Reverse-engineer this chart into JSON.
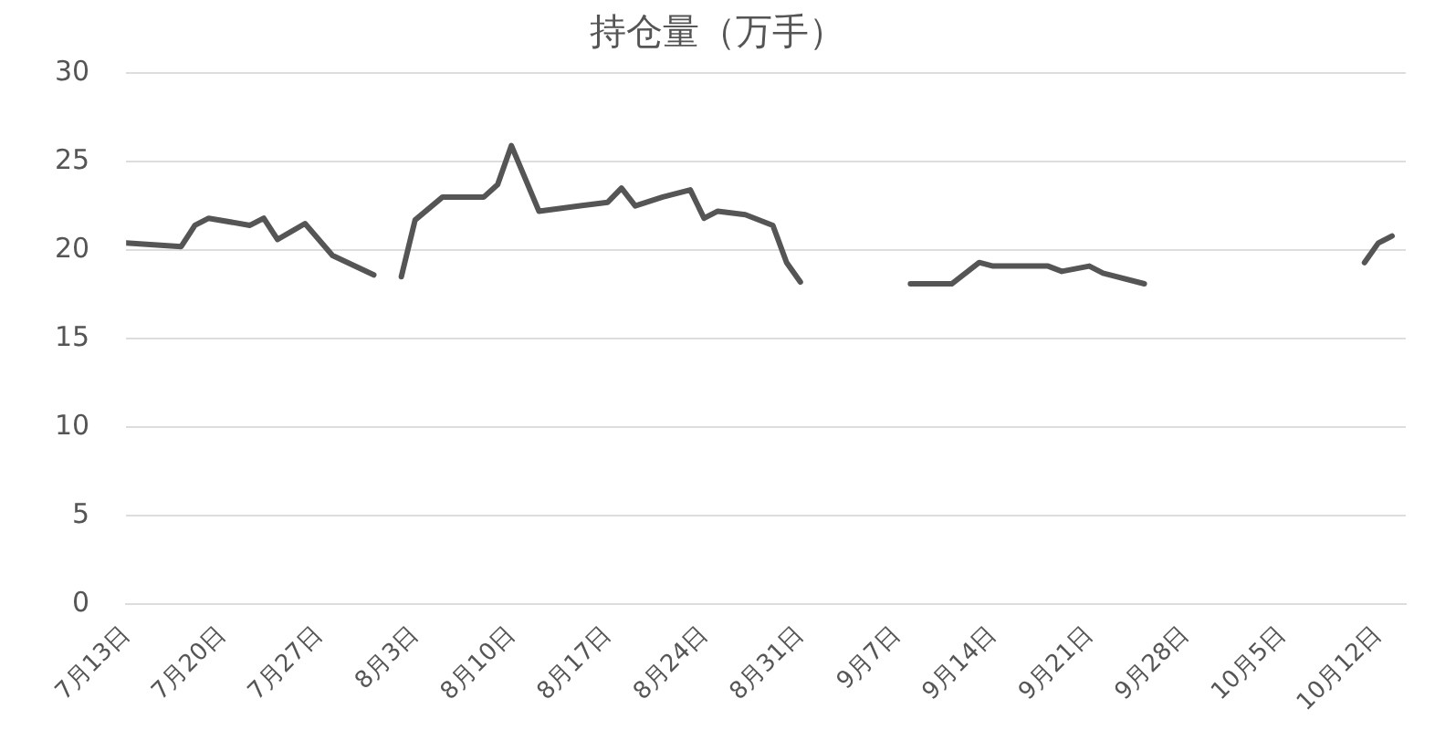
{
  "chart_data": {
    "type": "line",
    "title": "持仓量（万手）",
    "x": [
      "--07-13",
      "--07-17",
      "--07-18",
      "--07-19",
      "--07-22",
      "--07-23",
      "--07-24",
      "--07-26",
      "--07-28",
      "--07-31",
      "--08-01",
      "--08-02",
      "--08-03",
      "--08-05",
      "--08-08",
      "--08-09",
      "--08-10",
      "--08-12",
      "--08-15",
      "--08-17",
      "--08-18",
      "--08-19",
      "--08-21",
      "--08-23",
      "--08-24",
      "--08-25",
      "--08-27",
      "--08-29",
      "--08-30",
      "--08-31",
      "--09-04",
      "--09-08",
      "--09-11",
      "--09-13",
      "--09-14",
      "--09-18",
      "--09-19",
      "--09-21",
      "--09-22",
      "--09-25",
      "--09-30",
      "--10-11",
      "--10-12",
      "--10-13"
    ],
    "series": [
      {
        "color": "#555555",
        "values": [
          20.4,
          20.2,
          21.4,
          21.8,
          21.4,
          21.8,
          20.6,
          21.5,
          19.7,
          18.6,
          null,
          18.5,
          21.7,
          23.0,
          23.0,
          23.7,
          25.9,
          22.2,
          22.5,
          22.7,
          23.5,
          22.5,
          23.0,
          23.4,
          21.8,
          22.2,
          22.0,
          21.4,
          19.3,
          18.2,
          null,
          18.1,
          18.1,
          19.3,
          19.1,
          19.1,
          18.8,
          19.1,
          18.7,
          18.1,
          null,
          19.3,
          20.4,
          20.8
        ]
      }
    ],
    "xlim": [
      "--07-13",
      "--10-14"
    ],
    "xticks": [
      {
        "value": "--07-13",
        "label": "7月13日"
      },
      {
        "value": "--07-20",
        "label": "7月20日"
      },
      {
        "value": "--07-27",
        "label": "7月27日"
      },
      {
        "value": "--08-03",
        "label": "8月3日"
      },
      {
        "value": "--08-10",
        "label": "8月10日"
      },
      {
        "value": "--08-17",
        "label": "8月17日"
      },
      {
        "value": "--08-24",
        "label": "8月24日"
      },
      {
        "value": "--08-31",
        "label": "8月31日"
      },
      {
        "value": "--09-07",
        "label": "9月7日"
      },
      {
        "value": "--09-14",
        "label": "9月14日"
      },
      {
        "value": "--09-21",
        "label": "9月21日"
      },
      {
        "value": "--09-28",
        "label": "9月28日"
      },
      {
        "value": "--10-05",
        "label": "10月5日"
      },
      {
        "value": "--10-12",
        "label": "10月12日"
      }
    ],
    "ylim": [
      0,
      30
    ],
    "yticks": [
      0,
      5,
      10,
      15,
      20,
      25,
      30
    ],
    "grid": "y",
    "legend": false,
    "marker": "none",
    "line_style": "solid"
  }
}
